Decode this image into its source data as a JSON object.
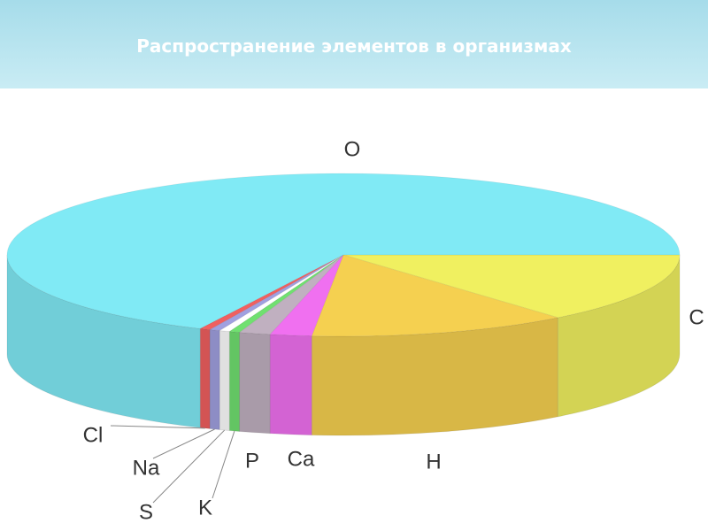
{
  "chart_data": {
    "type": "pie3d",
    "title": "Распространение элементов в организмах",
    "categories": [
      "C",
      "H",
      "Ca",
      "P",
      "K",
      "S",
      "Na",
      "Cl",
      "O"
    ],
    "values": [
      14,
      12.5,
      2,
      1.5,
      0.5,
      0.5,
      0.5,
      0.5,
      68
    ],
    "colors": [
      "#f0f060",
      "#f5d050",
      "#f070f0",
      "#c0b0c0",
      "#70e070",
      "#ffffff",
      "#a0a0e0",
      "#f06060",
      "#80eaf5"
    ]
  }
}
